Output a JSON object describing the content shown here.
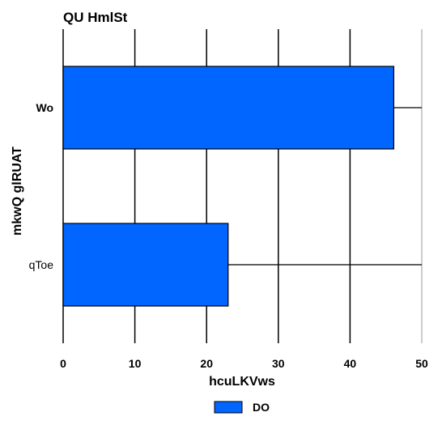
{
  "chart_data": {
    "type": "bar",
    "orientation": "horizontal",
    "title": "QU   HmlSt",
    "xlabel": "hcuLKVws",
    "ylabel": "mkwQ glRUAT",
    "categories": [
      "Wo",
      "qToe"
    ],
    "category_bold": [
      true,
      false
    ],
    "series": [
      {
        "name": "DO",
        "values": [
          46.1,
          23.0
        ],
        "color": "#0066ff"
      }
    ],
    "xlim": [
      0,
      50
    ],
    "xticks": [
      0,
      10,
      20,
      30,
      40,
      50
    ],
    "grid": true,
    "legend": "bottom-center"
  }
}
